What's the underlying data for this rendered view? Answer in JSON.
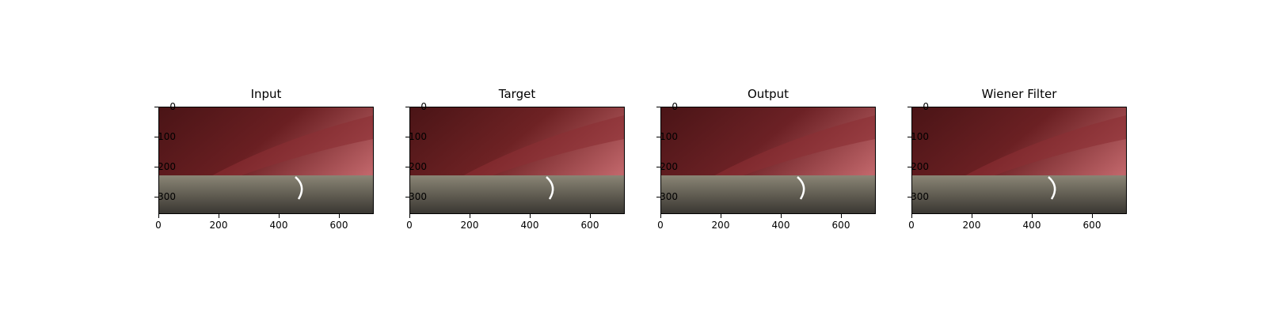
{
  "panels": [
    {
      "id": "input",
      "title": "Input",
      "tint": "#6a1f22"
    },
    {
      "id": "target",
      "title": "Target",
      "tint": "#6e2224"
    },
    {
      "id": "output",
      "title": "Output",
      "tint": "#6c2125"
    },
    {
      "id": "wiener",
      "title": "Wiener Filter",
      "tint": "#6b2023"
    }
  ],
  "axes": {
    "y_ticks": [
      "0",
      "100",
      "200",
      "300"
    ],
    "x_ticks": [
      "0",
      "200",
      "400",
      "600"
    ]
  },
  "colors": {
    "tissue_dark": "#4a1416",
    "tissue_mid": "#8c2f33",
    "tissue_light": "#c0666a",
    "instrument": "#8a8575",
    "instrument_dark": "#3a3732"
  }
}
